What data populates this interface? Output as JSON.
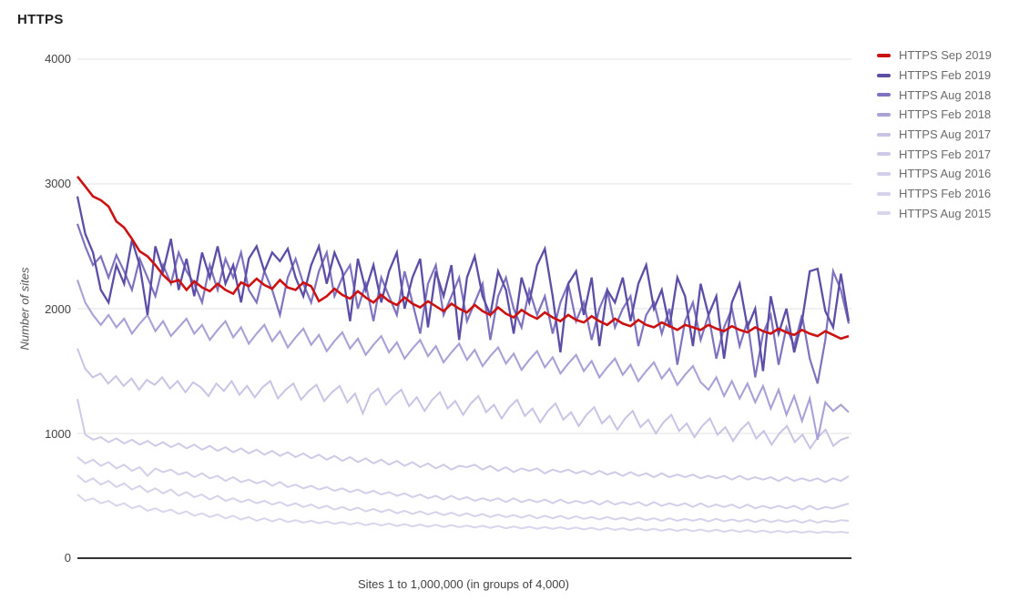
{
  "page": {
    "title": "HTTPS"
  },
  "chart_data": {
    "type": "line",
    "title": "HTTPS",
    "xlabel": "Sites 1 to 1,000,000 (in groups of 4,000)",
    "ylabel": "Number of sites",
    "ylim": [
      0,
      4000
    ],
    "ytick_labels": [
      "4000",
      "3000",
      "2000",
      "1000",
      "0"
    ],
    "ytick_values": [
      4000,
      3000,
      2000,
      1000,
      0
    ],
    "grid": true,
    "legend_position": "right",
    "x_description": "250 groups of 4,000 sites spanning sites 1 to 1,000,000 (sampled as 100 points per series)",
    "series": [
      {
        "name": "HTTPS Sep 2019",
        "color": "#cc1111",
        "width": 2.6,
        "values": [
          3060,
          2980,
          2900,
          2870,
          2820,
          2700,
          2650,
          2560,
          2460,
          2420,
          2350,
          2270,
          2210,
          2230,
          2150,
          2220,
          2170,
          2140,
          2200,
          2150,
          2120,
          2210,
          2180,
          2240,
          2190,
          2160,
          2230,
          2170,
          2150,
          2210,
          2180,
          2060,
          2100,
          2160,
          2110,
          2080,
          2140,
          2090,
          2050,
          2110,
          2060,
          2030,
          2090,
          2040,
          2010,
          2060,
          2020,
          1980,
          2040,
          2000,
          1970,
          2030,
          1980,
          1950,
          2010,
          1960,
          1930,
          1990,
          1950,
          1920,
          1970,
          1930,
          1900,
          1950,
          1910,
          1890,
          1940,
          1900,
          1870,
          1920,
          1880,
          1860,
          1910,
          1870,
          1850,
          1890,
          1860,
          1830,
          1870,
          1850,
          1830,
          1870,
          1840,
          1820,
          1860,
          1830,
          1810,
          1850,
          1820,
          1800,
          1840,
          1810,
          1790,
          1830,
          1800,
          1780,
          1820,
          1790,
          1760,
          1780
        ]
      },
      {
        "name": "HTTPS Feb 2019",
        "color": "#5b4ea6",
        "width": 2.3,
        "values": [
          2900,
          2600,
          2450,
          2150,
          2050,
          2350,
          2200,
          2550,
          2350,
          1950,
          2500,
          2300,
          2560,
          2150,
          2400,
          2100,
          2450,
          2250,
          2500,
          2200,
          2350,
          2050,
          2400,
          2500,
          2300,
          2450,
          2380,
          2480,
          2250,
          2100,
          2350,
          2500,
          2200,
          2450,
          2300,
          1900,
          2400,
          2150,
          2350,
          2050,
          2300,
          2450,
          2000,
          2250,
          2400,
          1850,
          2300,
          2100,
          2350,
          1750,
          2250,
          2420,
          2100,
          1950,
          2300,
          2150,
          1800,
          2250,
          2050,
          2350,
          2480,
          2100,
          1650,
          2200,
          2300,
          1950,
          2250,
          1700,
          2150,
          2050,
          2250,
          1900,
          2200,
          2350,
          2000,
          2150,
          1850,
          2250,
          2100,
          1700,
          2200,
          1950,
          2100,
          1600,
          2050,
          2200,
          1850,
          2000,
          1500,
          2100,
          1800,
          2000,
          1650,
          1900,
          2300,
          2320,
          1980,
          1850,
          2280,
          1900
        ]
      },
      {
        "name": "HTTPS Aug 2018",
        "color": "#7f73bf",
        "width": 2.2,
        "values": [
          2680,
          2500,
          2350,
          2420,
          2250,
          2430,
          2300,
          2150,
          2400,
          2250,
          2100,
          2350,
          2200,
          2450,
          2300,
          2200,
          2050,
          2350,
          2150,
          2400,
          2250,
          2450,
          2150,
          2050,
          2300,
          2150,
          1950,
          2250,
          2400,
          2200,
          2050,
          2300,
          2450,
          2100,
          2250,
          2350,
          2000,
          2200,
          1900,
          2250,
          2100,
          1950,
          2300,
          2050,
          1800,
          2200,
          2350,
          1950,
          2100,
          2250,
          1900,
          2050,
          2200,
          1750,
          2100,
          2250,
          2000,
          1850,
          2150,
          1950,
          2100,
          1800,
          2050,
          2200,
          1900,
          2050,
          1750,
          2000,
          2150,
          1850,
          2000,
          2100,
          1700,
          1950,
          2050,
          1800,
          2000,
          1550,
          1900,
          2050,
          1750,
          1950,
          1600,
          1850,
          2000,
          1700,
          1900,
          1450,
          1800,
          1950,
          1550,
          1850,
          1700,
          1950,
          1600,
          1400,
          1750,
          2300,
          2150,
          1880
        ]
      },
      {
        "name": "HTTPS Feb 2018",
        "color": "#aaa1d7",
        "width": 2.1,
        "values": [
          2230,
          2050,
          1950,
          1870,
          1950,
          1850,
          1920,
          1800,
          1880,
          1950,
          1820,
          1900,
          1780,
          1850,
          1920,
          1800,
          1870,
          1750,
          1830,
          1900,
          1770,
          1850,
          1720,
          1800,
          1870,
          1740,
          1820,
          1690,
          1770,
          1840,
          1710,
          1790,
          1660,
          1740,
          1810,
          1680,
          1760,
          1630,
          1710,
          1780,
          1650,
          1730,
          1600,
          1680,
          1750,
          1620,
          1700,
          1570,
          1650,
          1720,
          1590,
          1670,
          1540,
          1620,
          1690,
          1560,
          1640,
          1510,
          1590,
          1660,
          1530,
          1610,
          1480,
          1560,
          1630,
          1500,
          1580,
          1450,
          1530,
          1600,
          1470,
          1550,
          1420,
          1500,
          1570,
          1440,
          1520,
          1390,
          1470,
          1540,
          1410,
          1350,
          1450,
          1300,
          1420,
          1280,
          1400,
          1250,
          1380,
          1200,
          1350,
          1150,
          1300,
          1100,
          1280,
          950,
          1250,
          1180,
          1230,
          1170
        ]
      },
      {
        "name": "HTTPS Aug 2017",
        "color": "#c9c3e5",
        "width": 2,
        "values": [
          1680,
          1520,
          1450,
          1480,
          1400,
          1460,
          1380,
          1440,
          1350,
          1430,
          1390,
          1450,
          1360,
          1420,
          1330,
          1410,
          1370,
          1300,
          1400,
          1340,
          1420,
          1310,
          1380,
          1290,
          1370,
          1420,
          1280,
          1350,
          1400,
          1270,
          1340,
          1390,
          1260,
          1330,
          1380,
          1250,
          1320,
          1160,
          1310,
          1360,
          1230,
          1300,
          1350,
          1220,
          1290,
          1180,
          1270,
          1330,
          1200,
          1260,
          1150,
          1240,
          1300,
          1170,
          1230,
          1120,
          1210,
          1270,
          1140,
          1200,
          1090,
          1180,
          1240,
          1110,
          1170,
          1060,
          1150,
          1210,
          1080,
          1140,
          1030,
          1120,
          1180,
          1050,
          1110,
          1000,
          1090,
          1150,
          1020,
          1080,
          970,
          1060,
          1120,
          990,
          1050,
          940,
          1030,
          1090,
          960,
          1020,
          910,
          1000,
          1060,
          930,
          990,
          880,
          970,
          1030,
          900,
          950,
          970
        ]
      },
      {
        "name": "HTTPS Feb 2017",
        "color": "#cfcae8",
        "width": 2,
        "values": [
          1277,
          990,
          950,
          970,
          930,
          960,
          920,
          950,
          910,
          940,
          900,
          930,
          890,
          920,
          880,
          910,
          870,
          900,
          860,
          890,
          850,
          880,
          840,
          870,
          830,
          860,
          820,
          850,
          810,
          840,
          800,
          830,
          790,
          820,
          780,
          810,
          770,
          800,
          760,
          790,
          750,
          780,
          740,
          770,
          730,
          760,
          720,
          750,
          710,
          740,
          730,
          750,
          710,
          740,
          700,
          730,
          690,
          720,
          700,
          720,
          680,
          710,
          690,
          710,
          680,
          700,
          670,
          700,
          670,
          690,
          660,
          690,
          660,
          680,
          650,
          680,
          650,
          670,
          650,
          670,
          640,
          660,
          640,
          660,
          630,
          660,
          630,
          650,
          630,
          650,
          620,
          650,
          620,
          640,
          620,
          640,
          610,
          640,
          620,
          657
        ]
      },
      {
        "name": "HTTPS Aug 2016",
        "color": "#d3cee9",
        "width": 2,
        "values": [
          810,
          760,
          790,
          740,
          770,
          720,
          750,
          700,
          730,
          660,
          720,
          690,
          710,
          670,
          690,
          650,
          680,
          640,
          660,
          620,
          650,
          610,
          630,
          600,
          620,
          580,
          610,
          570,
          590,
          560,
          580,
          550,
          570,
          540,
          560,
          530,
          550,
          520,
          540,
          510,
          530,
          500,
          520,
          490,
          510,
          480,
          500,
          470,
          500,
          470,
          490,
          460,
          480,
          460,
          480,
          450,
          480,
          450,
          470,
          450,
          470,
          440,
          470,
          440,
          460,
          440,
          460,
          430,
          460,
          430,
          450,
          430,
          450,
          420,
          450,
          420,
          440,
          420,
          440,
          410,
          440,
          410,
          430,
          410,
          430,
          400,
          430,
          400,
          420,
          400,
          420,
          400,
          420,
          390,
          420,
          390,
          410,
          400,
          420,
          438
        ]
      },
      {
        "name": "HTTPS Feb 2016",
        "color": "#d6d2eb",
        "width": 2,
        "values": [
          664,
          610,
          640,
          590,
          620,
          570,
          600,
          550,
          580,
          530,
          560,
          520,
          550,
          500,
          530,
          490,
          510,
          470,
          500,
          460,
          480,
          450,
          470,
          440,
          460,
          430,
          450,
          420,
          440,
          410,
          430,
          400,
          420,
          390,
          410,
          385,
          405,
          375,
          395,
          370,
          390,
          360,
          380,
          355,
          375,
          350,
          370,
          345,
          365,
          340,
          360,
          335,
          355,
          330,
          350,
          330,
          345,
          325,
          345,
          320,
          340,
          320,
          340,
          315,
          335,
          315,
          330,
          310,
          330,
          310,
          325,
          305,
          325,
          305,
          320,
          300,
          320,
          300,
          315,
          300,
          315,
          295,
          315,
          295,
          310,
          295,
          310,
          290,
          310,
          290,
          305,
          290,
          305,
          285,
          305,
          285,
          300,
          290,
          305,
          299
        ]
      },
      {
        "name": "HTTPS Aug 2015",
        "color": "#d9d5ed",
        "width": 2,
        "values": [
          511,
          460,
          480,
          440,
          460,
          420,
          440,
          400,
          420,
          380,
          400,
          370,
          390,
          355,
          375,
          340,
          360,
          330,
          350,
          320,
          340,
          310,
          330,
          300,
          320,
          295,
          315,
          290,
          305,
          285,
          300,
          280,
          295,
          275,
          290,
          270,
          285,
          265,
          280,
          262,
          278,
          258,
          274,
          255,
          270,
          252,
          268,
          250,
          265,
          248,
          262,
          245,
          260,
          243,
          258,
          240,
          255,
          238,
          252,
          236,
          250,
          234,
          248,
          232,
          246,
          230,
          244,
          228,
          242,
          226,
          240,
          224,
          238,
          222,
          236,
          220,
          234,
          218,
          232,
          216,
          230,
          214,
          228,
          212,
          226,
          210,
          224,
          208,
          222,
          206,
          220,
          205,
          218,
          204,
          216,
          203,
          214,
          205,
          212,
          204
        ]
      }
    ]
  }
}
